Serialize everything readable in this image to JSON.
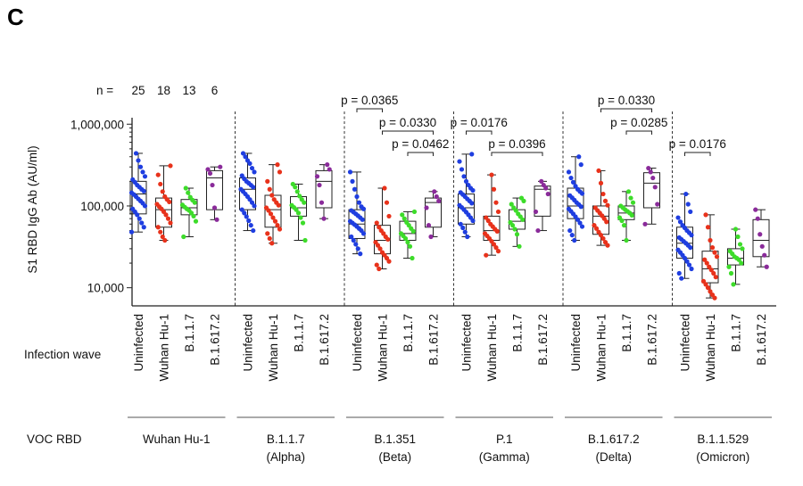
{
  "panel_label": "C",
  "chart_data": {
    "type": "scatter",
    "title": "",
    "ylabel": "S1 RBD IgG Ab (AU/ml)",
    "yscale": "log",
    "ylim": [
      6000,
      1200000
    ],
    "yticks": [
      {
        "value": 10000,
        "label": "10,000"
      },
      {
        "value": 100000,
        "label": "100,000"
      },
      {
        "value": 1000000,
        "label": "1,000,000"
      }
    ],
    "n_label": "n =",
    "n_values": [
      "25",
      "18",
      "13",
      "6"
    ],
    "infection_wave_label": "Infection wave",
    "voc_label": "VOC RBD",
    "categories": [
      "Uninfected",
      "Wuhan Hu-1",
      "B.1.1.7",
      "B.1.617.2"
    ],
    "colors": {
      "Uninfected": "#1f3ee0",
      "Wuhan Hu-1": "#e8321b",
      "B.1.1.7": "#3ddc2a",
      "B.1.617.2": "#8a2b9a"
    },
    "groups": [
      {
        "name": "Wuhan Hu-1",
        "subname": "",
        "boxes": [
          {
            "category": "Uninfected",
            "min": 48000,
            "q1": 80000,
            "median": 140000,
            "q3": 200000,
            "max": 440000,
            "points": [
              48000,
              55000,
              62000,
              70000,
              78000,
              85000,
              92000,
              100000,
              108000,
              115000,
              122000,
              130000,
              138000,
              145000,
              152000,
              160000,
              170000,
              180000,
              195000,
              210000,
              230000,
              260000,
              300000,
              360000,
              440000
            ]
          },
          {
            "category": "Wuhan Hu-1",
            "min": 38000,
            "q1": 55000,
            "median": 90000,
            "q3": 125000,
            "max": 310000,
            "points": [
              38000,
              42000,
              48000,
              55000,
              62000,
              70000,
              78000,
              85000,
              92000,
              98000,
              105000,
              112000,
              120000,
              130000,
              150000,
              185000,
              240000,
              310000
            ]
          },
          {
            "category": "B.1.1.7",
            "min": 42000,
            "q1": 78000,
            "median": 95000,
            "q3": 120000,
            "max": 165000,
            "points": [
              42000,
              65000,
              75000,
              82000,
              88000,
              92000,
              97000,
              103000,
              110000,
              118000,
              128000,
              145000,
              165000
            ]
          },
          {
            "category": "B.1.617.2",
            "min": 68000,
            "q1": 90000,
            "median": 220000,
            "q3": 270000,
            "max": 300000,
            "points": [
              68000,
              95000,
              180000,
              250000,
              280000,
              300000
            ]
          }
        ]
      },
      {
        "name": "B.1.1.7",
        "subname": "(Alpha)",
        "boxes": [
          {
            "category": "Uninfected",
            "min": 50000,
            "q1": 90000,
            "median": 160000,
            "q3": 220000,
            "max": 440000,
            "points": [
              50000,
              58000,
              66000,
              74000,
              82000,
              90000,
              100000,
              110000,
              120000,
              130000,
              140000,
              150000,
              160000,
              170000,
              180000,
              190000,
              200000,
              215000,
              235000,
              260000,
              290000,
              330000,
              360000,
              400000,
              440000
            ]
          },
          {
            "category": "Wuhan Hu-1",
            "min": 35000,
            "q1": 55000,
            "median": 90000,
            "q3": 135000,
            "max": 320000,
            "points": [
              35000,
              40000,
              46000,
              52000,
              58000,
              65000,
              72000,
              80000,
              88000,
              95000,
              102000,
              110000,
              120000,
              135000,
              160000,
              200000,
              260000,
              320000
            ]
          },
          {
            "category": "B.1.1.7",
            "min": 38000,
            "q1": 75000,
            "median": 95000,
            "q3": 130000,
            "max": 185000,
            "points": [
              38000,
              62000,
              72000,
              82000,
              90000,
              96000,
              102000,
              110000,
              120000,
              132000,
              150000,
              170000,
              185000
            ]
          },
          {
            "category": "B.1.617.2",
            "min": 70000,
            "q1": 95000,
            "median": 200000,
            "q3": 270000,
            "max": 320000,
            "points": [
              70000,
              110000,
              180000,
              230000,
              280000,
              320000
            ]
          }
        ],
        "pvalues": []
      },
      {
        "name": "B.1.351",
        "subname": "(Beta)",
        "boxes": [
          {
            "category": "Uninfected",
            "min": 26000,
            "q1": 40000,
            "median": 60000,
            "q3": 90000,
            "max": 260000,
            "points": [
              26000,
              30000,
              34000,
              38000,
              42000,
              46000,
              50000,
              53000,
              56000,
              59000,
              62000,
              65000,
              68000,
              72000,
              76000,
              80000,
              84000,
              88000,
              92000,
              98000,
              110000,
              130000,
              160000,
              200000,
              260000
            ]
          },
          {
            "category": "Wuhan Hu-1",
            "min": 17000,
            "q1": 26000,
            "median": 38000,
            "q3": 58000,
            "max": 165000,
            "points": [
              17000,
              19000,
              21000,
              23000,
              25000,
              27000,
              30000,
              33000,
              36000,
              39000,
              42000,
              46000,
              50000,
              55000,
              62000,
              75000,
              110000,
              165000
            ]
          },
          {
            "category": "B.1.1.7",
            "min": 23000,
            "q1": 38000,
            "median": 46000,
            "q3": 65000,
            "max": 85000,
            "points": [
              23000,
              32000,
              36000,
              40000,
              43000,
              46000,
              49000,
              53000,
              58000,
              63000,
              70000,
              78000,
              85000
            ]
          },
          {
            "category": "B.1.617.2",
            "min": 42000,
            "q1": 55000,
            "median": 110000,
            "q3": 125000,
            "max": 150000,
            "points": [
              42000,
              58000,
              95000,
              115000,
              130000,
              150000
            ]
          }
        ]
      },
      {
        "name": "P.1",
        "subname": "(Gamma)",
        "boxes": [
          {
            "category": "Uninfected",
            "min": 42000,
            "q1": 60000,
            "median": 95000,
            "q3": 140000,
            "max": 430000,
            "points": [
              42000,
              48000,
              54000,
              60000,
              66000,
              72000,
              78000,
              84000,
              90000,
              96000,
              102000,
              108000,
              115000,
              122000,
              130000,
              138000,
              146000,
              155000,
              165000,
              180000,
              200000,
              230000,
              280000,
              350000,
              430000
            ]
          },
          {
            "category": "Wuhan Hu-1",
            "min": 25000,
            "q1": 38000,
            "median": 50000,
            "q3": 75000,
            "max": 240000,
            "points": [
              25000,
              28000,
              31000,
              34000,
              37000,
              40000,
              43000,
              46000,
              49000,
              52000,
              56000,
              60000,
              66000,
              72000,
              85000,
              110000,
              160000,
              240000
            ]
          },
          {
            "category": "B.1.1.7",
            "min": 32000,
            "q1": 52000,
            "median": 65000,
            "q3": 90000,
            "max": 125000,
            "points": [
              32000,
              45000,
              52000,
              58000,
              63000,
              68000,
              74000,
              80000,
              88000,
              95000,
              105000,
              115000,
              125000
            ]
          },
          {
            "category": "B.1.617.2",
            "min": 50000,
            "q1": 75000,
            "median": 160000,
            "q3": 175000,
            "max": 200000,
            "points": [
              50000,
              85000,
              140000,
              165000,
              180000,
              200000
            ]
          }
        ]
      },
      {
        "name": "B.1.617.2",
        "subname": "(Delta)",
        "boxes": [
          {
            "category": "Uninfected",
            "min": 38000,
            "q1": 70000,
            "median": 100000,
            "q3": 165000,
            "max": 400000,
            "points": [
              38000,
              44000,
              50000,
              56000,
              62000,
              68000,
              74000,
              80000,
              86000,
              92000,
              98000,
              104000,
              110000,
              118000,
              126000,
              134000,
              142000,
              150000,
              160000,
              175000,
              195000,
              220000,
              260000,
              320000,
              400000
            ]
          },
          {
            "category": "Wuhan Hu-1",
            "min": 33000,
            "q1": 45000,
            "median": 75000,
            "q3": 100000,
            "max": 270000,
            "points": [
              33000,
              36000,
              40000,
              44000,
              48000,
              53000,
              58000,
              64000,
              70000,
              76000,
              82000,
              88000,
              95000,
              102000,
              115000,
              140000,
              190000,
              270000
            ]
          },
          {
            "category": "B.1.1.7",
            "min": 38000,
            "q1": 68000,
            "median": 82000,
            "q3": 100000,
            "max": 150000,
            "points": [
              38000,
              58000,
              66000,
              72000,
              77000,
              82000,
              86000,
              90000,
              95000,
              100000,
              110000,
              125000,
              150000
            ]
          },
          {
            "category": "B.1.617.2",
            "min": 60000,
            "q1": 95000,
            "median": 190000,
            "q3": 255000,
            "max": 290000,
            "points": [
              60000,
              105000,
              170000,
              220000,
              260000,
              290000
            ]
          }
        ]
      },
      {
        "name": "B.1.1.529",
        "subname": "(Omicron)",
        "boxes": [
          {
            "category": "Uninfected",
            "min": 13000,
            "q1": 23000,
            "median": 35000,
            "q3": 55000,
            "max": 140000,
            "points": [
              13000,
              15000,
              17000,
              19000,
              21000,
              23000,
              25000,
              27000,
              29000,
              31000,
              33000,
              35000,
              37000,
              39000,
              41000,
              44000,
              47000,
              50000,
              54000,
              58000,
              64000,
              72000,
              85000,
              105000,
              140000
            ]
          },
          {
            "category": "Wuhan Hu-1",
            "min": 7500,
            "q1": 11500,
            "median": 17000,
            "q3": 28000,
            "max": 78000,
            "points": [
              7500,
              8200,
              9000,
              10000,
              11000,
              12000,
              13500,
              15000,
              16500,
              18000,
              20000,
              22000,
              24000,
              27000,
              31000,
              38000,
              55000,
              78000
            ]
          },
          {
            "category": "B.1.1.7",
            "min": 11000,
            "q1": 19000,
            "median": 23000,
            "q3": 30000,
            "max": 52000,
            "points": [
              11000,
              15000,
              18000,
              20000,
              22000,
              23000,
              24000,
              26000,
              28000,
              30000,
              34000,
              42000,
              52000
            ]
          },
          {
            "category": "B.1.617.2",
            "min": 18000,
            "q1": 24000,
            "median": 38000,
            "q3": 68000,
            "max": 90000,
            "points": [
              18000,
              25000,
              32000,
              45000,
              70000,
              90000
            ]
          }
        ]
      }
    ],
    "pvalues": [
      {
        "group": 2,
        "from": 0,
        "to": 1,
        "label": "p = 0.0365",
        "level": 0
      },
      {
        "group": 2,
        "from": 1,
        "to": 3,
        "label": "p = 0.0330",
        "level": 1
      },
      {
        "group": 2,
        "from": 2,
        "to": 3,
        "label": "p = 0.0462",
        "level": 2
      },
      {
        "group": 3,
        "from": 0,
        "to": 1,
        "label": "p = 0.0176",
        "level": 1
      },
      {
        "group": 3,
        "from": 1,
        "to": 3,
        "label": "p = 0.0396",
        "level": 2
      },
      {
        "group": 4,
        "from": 1,
        "to": 3,
        "label": "p = 0.0330",
        "level": 0
      },
      {
        "group": 4,
        "from": 2,
        "to": 3,
        "label": "p = 0.0285",
        "level": 1
      },
      {
        "group": 5,
        "from": 0,
        "to": 1,
        "label": "p = 0.0176",
        "level": 2
      }
    ]
  }
}
